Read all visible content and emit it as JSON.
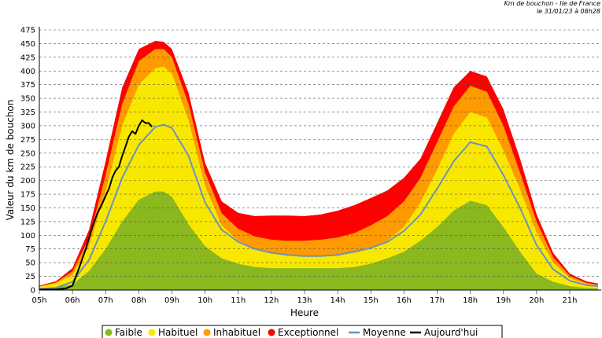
{
  "header": {
    "line1": "Km de bouchon - Ile de France",
    "line2": "le 31/01/23 à 08h28"
  },
  "chart_data": {
    "type": "area",
    "title": "Km de bouchon - Ile de France",
    "subtitle": "le 31/01/23 à 08h28",
    "xlabel": "Heure",
    "ylabel": "Valeur du  km de bouchon",
    "ylim": [
      0,
      475
    ],
    "xlim": [
      5.0,
      21.95
    ],
    "yticks": [
      0,
      25,
      50,
      75,
      100,
      125,
      150,
      175,
      200,
      225,
      250,
      275,
      300,
      325,
      350,
      375,
      400,
      425,
      450,
      475
    ],
    "xticks": [
      {
        "value": 5,
        "label": "05h"
      },
      {
        "value": 6,
        "label": "06h"
      },
      {
        "value": 7,
        "label": "07h"
      },
      {
        "value": 8,
        "label": "08h"
      },
      {
        "value": 9,
        "label": "09h"
      },
      {
        "value": 10,
        "label": "10h"
      },
      {
        "value": 11,
        "label": "11h"
      },
      {
        "value": 12,
        "label": "12h"
      },
      {
        "value": 13,
        "label": "13h"
      },
      {
        "value": 14,
        "label": "14h"
      },
      {
        "value": 15,
        "label": "15h"
      },
      {
        "value": 16,
        "label": "16h"
      },
      {
        "value": 17,
        "label": "17h"
      },
      {
        "value": 18,
        "label": "18h"
      },
      {
        "value": 19,
        "label": "19h"
      },
      {
        "value": 20,
        "label": "20h"
      },
      {
        "value": 21,
        "label": "21h"
      }
    ],
    "grid": true,
    "legend_position": "bottom",
    "x": [
      5,
      5.5,
      6,
      6.5,
      7,
      7.5,
      8,
      8.5,
      8.75,
      9,
      9.5,
      10,
      10.5,
      11,
      11.5,
      12,
      12.5,
      13,
      13.5,
      14,
      14.5,
      15,
      15.5,
      16,
      16.5,
      17,
      17.5,
      18,
      18.5,
      19,
      19.5,
      20,
      20.5,
      21,
      21.5,
      21.85
    ],
    "series": [
      {
        "name": "Faible",
        "kind": "area",
        "color": "#8ab81e",
        "values": [
          3,
          5,
          10,
          35,
          75,
          125,
          165,
          180,
          180,
          170,
          120,
          80,
          58,
          48,
          42,
          40,
          40,
          40,
          40,
          40,
          42,
          48,
          58,
          70,
          90,
          115,
          145,
          163,
          155,
          115,
          70,
          30,
          15,
          7,
          4,
          3
        ]
      },
      {
        "name": "Habituel",
        "kind": "area",
        "color": "#f8e800",
        "values": [
          6,
          12,
          28,
          80,
          180,
          300,
          375,
          405,
          408,
          395,
          310,
          190,
          118,
          90,
          76,
          68,
          64,
          62,
          62,
          64,
          68,
          75,
          90,
          115,
          160,
          220,
          285,
          325,
          315,
          255,
          185,
          105,
          50,
          22,
          11,
          8
        ]
      },
      {
        "name": "Inhabituel",
        "kind": "area",
        "color": "#ff9a00",
        "values": [
          7,
          14,
          34,
          95,
          210,
          340,
          418,
          440,
          440,
          425,
          340,
          215,
          140,
          112,
          98,
          92,
          90,
          90,
          92,
          96,
          104,
          118,
          135,
          162,
          205,
          270,
          335,
          373,
          362,
          300,
          215,
          125,
          60,
          26,
          13,
          10
        ]
      },
      {
        "name": "Exceptionnel",
        "kind": "area",
        "color": "#ff0000",
        "values": [
          8,
          16,
          40,
          110,
          235,
          370,
          440,
          455,
          453,
          440,
          360,
          232,
          162,
          141,
          135,
          136,
          136,
          135,
          138,
          145,
          155,
          168,
          182,
          205,
          240,
          305,
          370,
          400,
          390,
          330,
          240,
          138,
          68,
          30,
          16,
          12
        ]
      },
      {
        "name": "Moyenne",
        "kind": "line",
        "color": "#6c93b9",
        "values": [
          2,
          4,
          15,
          55,
          125,
          205,
          265,
          298,
          302,
          296,
          245,
          160,
          110,
          88,
          75,
          68,
          64,
          62,
          62,
          64,
          70,
          77,
          88,
          108,
          138,
          185,
          235,
          270,
          262,
          210,
          150,
          82,
          38,
          17,
          9,
          7
        ]
      },
      {
        "name": "Aujourd'hui",
        "kind": "line",
        "color": "#000000",
        "x": [
          5,
          5.5,
          5.8,
          6,
          6.2,
          6.4,
          6.6,
          6.75,
          6.9,
          7,
          7.1,
          7.2,
          7.3,
          7.4,
          7.5,
          7.6,
          7.7,
          7.8,
          7.9,
          8,
          8.1,
          8.2,
          8.3,
          8.4
        ],
        "values": [
          1,
          1,
          3,
          8,
          40,
          75,
          115,
          140,
          158,
          172,
          185,
          205,
          218,
          225,
          245,
          262,
          280,
          290,
          285,
          300,
          310,
          305,
          305,
          298
        ]
      }
    ]
  }
}
